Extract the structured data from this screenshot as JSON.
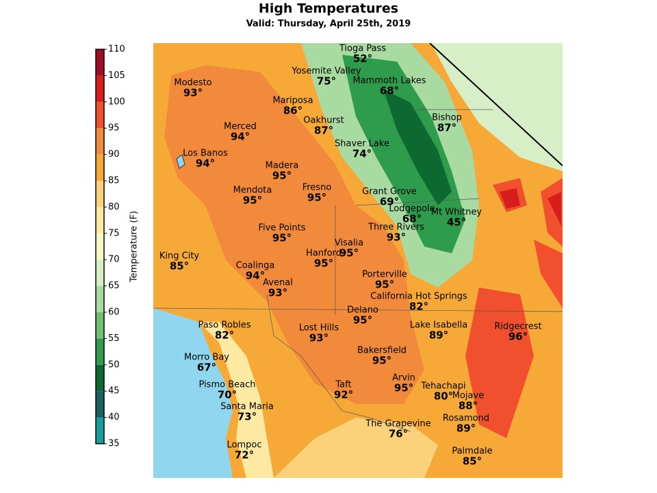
{
  "header": {
    "title": "High Temperatures",
    "subtitle": "Valid: Thursday, April 25th, 2019"
  },
  "colorbar": {
    "label": "Temperature (F)",
    "range": [
      35,
      110
    ],
    "ticks": [
      35,
      40,
      45,
      50,
      55,
      60,
      65,
      70,
      75,
      80,
      85,
      90,
      95,
      100,
      105,
      110
    ],
    "colors": [
      "#1a9c9c",
      "#1d5e5e",
      "#0c6a30",
      "#2f9b4d",
      "#70bf74",
      "#a8daa2",
      "#d6efc6",
      "#f5f7c2",
      "#fde9a2",
      "#fbd27b",
      "#f6a937",
      "#f28a3c",
      "#f0502d",
      "#d81d1d",
      "#a00d24"
    ]
  },
  "cities": [
    {
      "name": "Tioga Pass",
      "temp": "52°"
    },
    {
      "name": "Yosemite Valley",
      "temp": "75°"
    },
    {
      "name": "Mammoth Lakes",
      "temp": "68°"
    },
    {
      "name": "Modesto",
      "temp": "93°"
    },
    {
      "name": "Mariposa",
      "temp": "86°"
    },
    {
      "name": "Bishop",
      "temp": "87°"
    },
    {
      "name": "Oakhurst",
      "temp": "87°"
    },
    {
      "name": "Merced",
      "temp": "94°"
    },
    {
      "name": "Shaver Lake",
      "temp": "74°"
    },
    {
      "name": "Los Banos",
      "temp": "94°"
    },
    {
      "name": "Madera",
      "temp": "95°"
    },
    {
      "name": "Fresno",
      "temp": "95°"
    },
    {
      "name": "Mendota",
      "temp": "95°"
    },
    {
      "name": "Grant Grove",
      "temp": "69°"
    },
    {
      "name": "Lodgepole",
      "temp": "68°"
    },
    {
      "name": "Mt Whitney",
      "temp": "45°"
    },
    {
      "name": "Five Points",
      "temp": "95°"
    },
    {
      "name": "Three Rivers",
      "temp": "93°"
    },
    {
      "name": "Visalia",
      "temp": "95°"
    },
    {
      "name": "Hanford",
      "temp": "95°"
    },
    {
      "name": "King City",
      "temp": "85°"
    },
    {
      "name": "Coalinga",
      "temp": "94°"
    },
    {
      "name": "Porterville",
      "temp": "95°"
    },
    {
      "name": "Avenal",
      "temp": "93°"
    },
    {
      "name": "California Hot Springs",
      "temp": "82°"
    },
    {
      "name": "Delano",
      "temp": "95°"
    },
    {
      "name": "Paso Robles",
      "temp": "82°"
    },
    {
      "name": "Lost Hills",
      "temp": "93°"
    },
    {
      "name": "Lake Isabella",
      "temp": "89°"
    },
    {
      "name": "Ridgecrest",
      "temp": "96°"
    },
    {
      "name": "Bakersfield",
      "temp": "95°"
    },
    {
      "name": "Morro Bay",
      "temp": "67°"
    },
    {
      "name": "Arvin",
      "temp": "95°"
    },
    {
      "name": "Taft",
      "temp": "92°"
    },
    {
      "name": "Tehachapi",
      "temp": "80°"
    },
    {
      "name": "Pismo Beach",
      "temp": "70°"
    },
    {
      "name": "Mojave",
      "temp": "88°"
    },
    {
      "name": "Santa Maria",
      "temp": "73°"
    },
    {
      "name": "Rosamond",
      "temp": "89°"
    },
    {
      "name": "The Grapevine",
      "temp": "76°"
    },
    {
      "name": "Lompoc",
      "temp": "72°"
    },
    {
      "name": "Palmdale",
      "temp": "85°"
    }
  ]
}
